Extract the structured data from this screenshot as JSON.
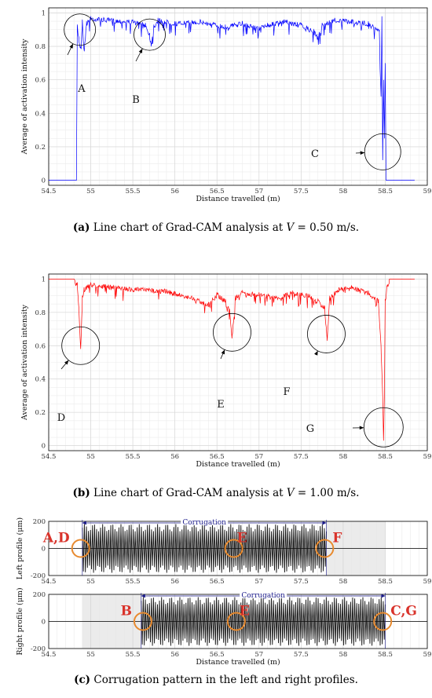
{
  "chart_data": [
    {
      "id": "a",
      "type": "line",
      "xlabel": "Distance travelled (m)",
      "ylabel": "Average of activation intensity",
      "xlim": [
        54.5,
        59
      ],
      "ylim": [
        -0.03,
        1.03
      ],
      "xticks": [
        "54.5",
        "55",
        "55.5",
        "56",
        "56.5",
        "57",
        "57.5",
        "58",
        "58.5",
        "59"
      ],
      "yticks": [
        "0",
        "0.2",
        "0.4",
        "0.6",
        "0.8",
        "1"
      ],
      "grid": true,
      "color": "#0000ff",
      "series": [
        {
          "x": [
            54.5,
            54.83,
            54.84,
            54.86,
            54.88,
            54.9,
            54.92,
            54.95,
            55.0,
            55.2,
            55.5,
            55.65,
            55.7,
            55.72,
            55.75,
            55.8,
            56.0,
            56.3,
            56.6,
            56.8,
            57.0,
            57.1,
            57.3,
            57.5,
            57.65,
            57.7,
            57.75,
            57.9,
            58.1,
            58.3,
            58.43,
            58.45,
            58.46,
            58.47,
            58.48,
            58.49,
            58.5,
            58.51,
            58.85
          ],
          "y": [
            0,
            0,
            0.93,
            0.85,
            0.8,
            0.96,
            0.78,
            0.95,
            0.98,
            0.97,
            0.96,
            0.94,
            0.88,
            0.82,
            0.93,
            0.97,
            0.95,
            0.96,
            0.93,
            0.95,
            0.92,
            0.94,
            0.96,
            0.94,
            0.9,
            0.86,
            0.94,
            0.97,
            0.96,
            0.95,
            0.9,
            0.5,
            0.98,
            0.12,
            0.6,
            0.25,
            0.7,
            0,
            0
          ]
        }
      ],
      "callouts": [
        {
          "label": "A",
          "x": 54.87,
          "y": 0.9
        },
        {
          "label": "B",
          "x": 55.7,
          "y": 0.87
        },
        {
          "label": "C",
          "x": 58.47,
          "y": 0.17
        }
      ]
    },
    {
      "id": "b",
      "type": "line",
      "xlabel": "Distance travelled (m)",
      "ylabel": "Average of activation intensity",
      "xlim": [
        54.5,
        59
      ],
      "ylim": [
        -0.03,
        1.03
      ],
      "xticks": [
        "54.5",
        "55",
        "55.5",
        "56",
        "56.5",
        "57",
        "57.5",
        "58",
        "58.5",
        "59"
      ],
      "yticks": [
        "0",
        "0.2",
        "0.4",
        "0.6",
        "0.8",
        "1"
      ],
      "grid": true,
      "color": "#ff0000",
      "series": [
        {
          "x": [
            54.5,
            54.8,
            54.84,
            54.86,
            54.88,
            54.9,
            54.92,
            55.0,
            55.3,
            55.6,
            55.9,
            56.2,
            56.4,
            56.5,
            56.6,
            56.65,
            56.68,
            56.72,
            56.8,
            57.0,
            57.2,
            57.4,
            57.6,
            57.7,
            57.78,
            57.81,
            57.84,
            57.95,
            58.1,
            58.3,
            58.42,
            58.45,
            58.47,
            58.48,
            58.49,
            58.5,
            58.52,
            58.55,
            58.85
          ],
          "y": [
            1,
            1,
            0.98,
            0.82,
            0.58,
            0.9,
            0.95,
            0.98,
            0.96,
            0.95,
            0.94,
            0.9,
            0.86,
            0.92,
            0.88,
            0.82,
            0.66,
            0.9,
            0.93,
            0.92,
            0.9,
            0.93,
            0.91,
            0.88,
            0.84,
            0.64,
            0.9,
            0.95,
            0.96,
            0.93,
            0.88,
            0.6,
            0.3,
            0.03,
            0.3,
            0.88,
            0.96,
            1,
            1
          ]
        }
      ],
      "callouts": [
        {
          "label": "D",
          "x": 54.88,
          "y": 0.6
        },
        {
          "label": "E",
          "x": 56.68,
          "y": 0.68
        },
        {
          "label": "F",
          "x": 57.8,
          "y": 0.67
        },
        {
          "label": "G",
          "x": 58.48,
          "y": 0.11
        }
      ]
    },
    {
      "id": "c-left",
      "type": "line",
      "xlabel": "",
      "ylabel": "Left profile (μm)",
      "xlim": [
        54.5,
        59
      ],
      "ylim": [
        -200,
        200
      ],
      "xticks": [
        "54.5",
        "55",
        "55.5",
        "56",
        "56.5",
        "57",
        "57.5",
        "58",
        "58.5",
        "59"
      ],
      "yticks": [
        "-200",
        "0",
        "200"
      ],
      "corrugation_range": [
        54.9,
        57.8
      ],
      "shaded_range": [
        57.8,
        58.5
      ],
      "corrugation_label": "Corrugation",
      "amplitude": 180,
      "callouts": [
        {
          "label": "A,D",
          "x": 54.88
        },
        {
          "label": "E",
          "x": 56.7
        },
        {
          "label": "F",
          "x": 57.78
        }
      ]
    },
    {
      "id": "c-right",
      "type": "line",
      "xlabel": "Distance travelled (m)",
      "ylabel": "Right profile (μm)",
      "xlim": [
        54.5,
        59
      ],
      "ylim": [
        -200,
        200
      ],
      "xticks": [
        "54.5",
        "55",
        "55.5",
        "56",
        "56.5",
        "57",
        "57.5",
        "58",
        "58.5",
        "59"
      ],
      "yticks": [
        "-200",
        "0",
        "200"
      ],
      "corrugation_range": [
        55.6,
        58.5
      ],
      "shaded_range": [
        54.9,
        55.6
      ],
      "corrugation_label": "Corrugation",
      "amplitude": 180,
      "callouts": [
        {
          "label": "B",
          "x": 55.62
        },
        {
          "label": "E",
          "x": 56.73
        },
        {
          "label": "C,G",
          "x": 58.47
        }
      ]
    }
  ],
  "captions": {
    "a": {
      "tag": "(a)",
      "text": " Line chart of Grad-CAM analysis at ",
      "var": "V",
      "value": " = 0.50 m/s."
    },
    "b": {
      "tag": "(b)",
      "text": " Line chart of Grad-CAM analysis at ",
      "var": "V",
      "value": " = 1.00 m/s."
    },
    "c": {
      "tag": "(c)",
      "text": " Corrugation pattern in the left and right profiles."
    }
  }
}
